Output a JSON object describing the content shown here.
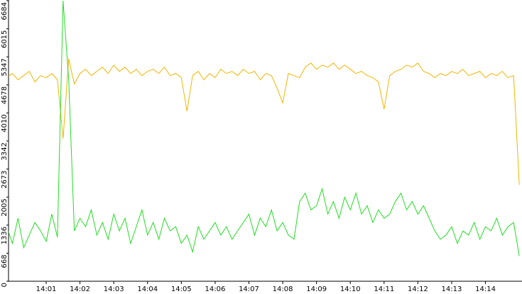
{
  "chart_data": {
    "type": "line",
    "categories": [
      null,
      null,
      null,
      null,
      null,
      null,
      null,
      "14:01",
      null,
      null,
      null,
      null,
      null,
      "14:02",
      null,
      null,
      null,
      null,
      null,
      "14:03",
      null,
      null,
      null,
      null,
      null,
      "14:04",
      null,
      null,
      null,
      null,
      null,
      "14:05",
      null,
      null,
      null,
      null,
      null,
      "14:06",
      null,
      null,
      null,
      null,
      null,
      "14:07",
      null,
      null,
      null,
      null,
      null,
      "14:08",
      null,
      null,
      null,
      null,
      null,
      "14:09",
      null,
      null,
      null,
      null,
      null,
      "14:10",
      null,
      null,
      null,
      null,
      null,
      "14:11",
      null,
      null,
      null,
      null,
      null,
      "14:12",
      null,
      null,
      null,
      null,
      null,
      "14:13",
      null,
      null,
      null,
      null,
      null,
      "14:14",
      null,
      null,
      null,
      null,
      null,
      null
    ],
    "series": [
      {
        "color": "#f2b500",
        "values": [
          4850,
          4950,
          4800,
          4900,
          5000,
          4750,
          4900,
          4850,
          4950,
          4800,
          3400,
          5300,
          4700,
          4950,
          5050,
          4900,
          5000,
          5100,
          4950,
          5150,
          5000,
          5100,
          4950,
          5050,
          4900,
          5000,
          5050,
          4950,
          5100,
          4900,
          4950,
          4850,
          4050,
          4900,
          5000,
          4800,
          4950,
          4850,
          5050,
          4950,
          5000,
          4900,
          5050,
          4950,
          5000,
          4800,
          4950,
          4900,
          4600,
          4250,
          4950,
          4900,
          4850,
          5100,
          5200,
          5050,
          5150,
          5100,
          5200,
          5050,
          5150,
          5050,
          4950,
          5000,
          4900,
          4850,
          4750,
          4100,
          4900,
          5000,
          5050,
          5150,
          5100,
          5200,
          5000,
          4950,
          4850,
          4950,
          4900,
          5000,
          4950,
          5050,
          4900,
          4950,
          5000,
          4850,
          4950,
          4900,
          5000,
          4850,
          4900,
          2300
        ]
      },
      {
        "color": "#22dd22",
        "values": [
          1300,
          900,
          1500,
          800,
          1100,
          1400,
          1200,
          950,
          1600,
          1050,
          6684,
          4800,
          1200,
          1500,
          1300,
          1700,
          1100,
          1400,
          1000,
          1600,
          1200,
          1500,
          900,
          1300,
          1700,
          1100,
          1400,
          1000,
          1500,
          1200,
          1300,
          900,
          1100,
          700,
          1300,
          1000,
          1200,
          1400,
          1100,
          1300,
          1000,
          1200,
          1400,
          1600,
          1100,
          1500,
          1300,
          1700,
          1200,
          1400,
          1100,
          1000,
          1900,
          2100,
          1700,
          1800,
          2200,
          1600,
          1900,
          1500,
          2000,
          1700,
          2100,
          1600,
          1800,
          1400,
          1700,
          1500,
          1600,
          1900,
          2100,
          1700,
          1900,
          1600,
          1800,
          1500,
          1200,
          1000,
          1100,
          1300,
          900,
          1200,
          1100,
          1400,
          1000,
          1300,
          1200,
          1500,
          1100,
          1300,
          1400,
          600
        ]
      }
    ],
    "ylim": [
      0,
      6684
    ],
    "yticks": [
      0,
      668,
      1336,
      2005,
      2673,
      3342,
      4010,
      4678,
      5347,
      6015,
      6684
    ]
  }
}
